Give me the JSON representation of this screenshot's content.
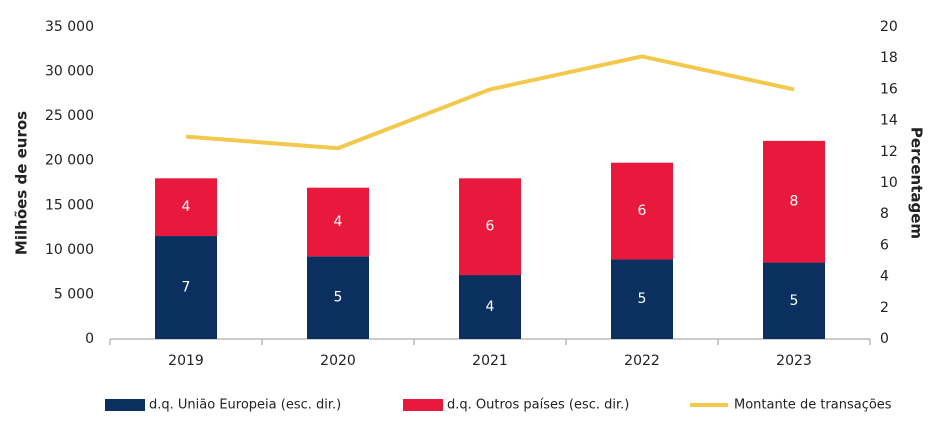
{
  "chart_data": {
    "type": "bar-line",
    "categories": [
      "2019",
      "2020",
      "2021",
      "2022",
      "2023"
    ],
    "y_label": "Milhões de euros",
    "y2_label": "Percentagem",
    "ylim": [
      0,
      35000
    ],
    "yticks": [
      0,
      {
        "value": 5000,
        "label": "5 000"
      },
      {
        "value": 10000,
        "label": "10 000"
      },
      {
        "value": 15000,
        "label": "15 000"
      },
      {
        "value": 20000,
        "label": "20 000"
      },
      {
        "value": 25000,
        "label": "25 000"
      },
      {
        "value": 30000,
        "label": "30 000"
      },
      {
        "value": 35000,
        "label": "35 000"
      }
    ],
    "y2lim": [
      0,
      20
    ],
    "y2ticks": [
      0,
      2,
      4,
      6,
      8,
      10,
      12,
      14,
      16,
      18,
      20
    ],
    "series": [
      {
        "name": "d.q. União Europeia (esc. dir.)",
        "type": "bar",
        "axis": "y2",
        "color": "#0b3060",
        "values": [
          6.6,
          5.3,
          4.1,
          5.1,
          4.9
        ],
        "value_labels": [
          "7",
          "5",
          "4",
          "5",
          "5"
        ]
      },
      {
        "name": "d.q. Outros países (esc. dir.)",
        "type": "bar",
        "axis": "y2",
        "color": "#e8193c",
        "values": [
          3.7,
          4.4,
          6.2,
          6.2,
          7.8
        ],
        "value_labels": [
          "4",
          "4",
          "6",
          "6",
          "8"
        ]
      },
      {
        "name": "Montante de transações",
        "type": "line",
        "color": "#f2c94c",
        "values": [
          22700,
          21400,
          28000,
          31700,
          28000
        ]
      }
    ]
  }
}
